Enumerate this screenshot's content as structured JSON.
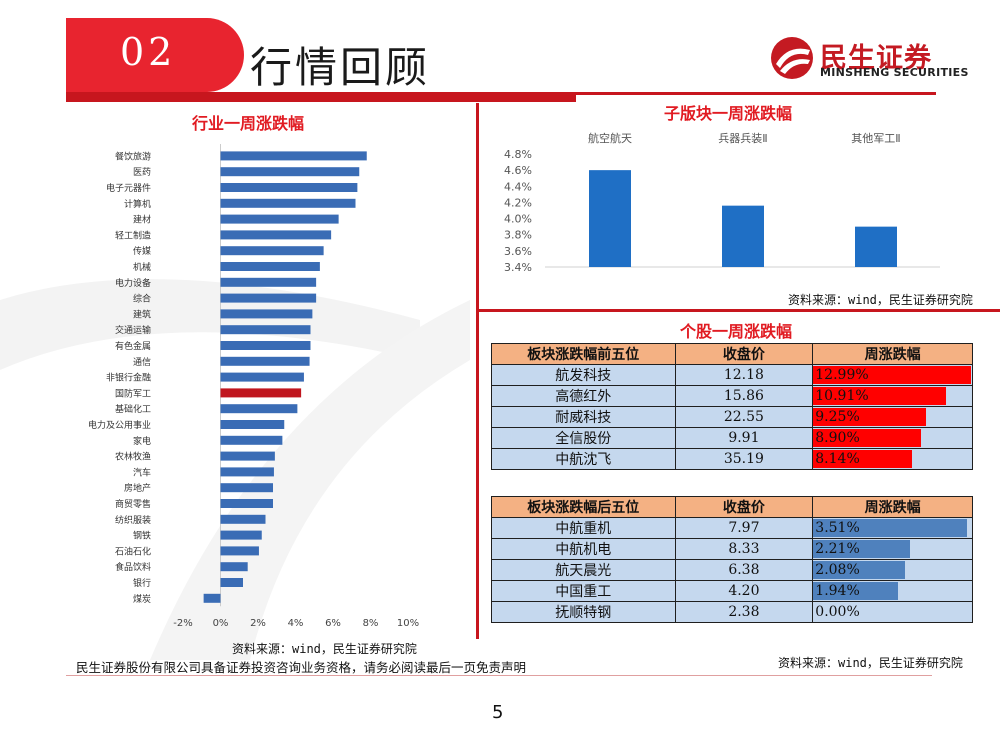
{
  "header": {
    "section_number": "02",
    "title": "行情回顾"
  },
  "logo": {
    "name_cn": "民生证券",
    "name_en": "MINSHENG SECURITIES"
  },
  "industry_chart": {
    "title": "行业一周涨跌幅",
    "source": "资料来源：wind，民生证券研究院",
    "chart_data": {
      "type": "bar",
      "orientation": "horizontal",
      "categories": [
        "餐饮旅游",
        "医药",
        "电子元器件",
        "计算机",
        "建材",
        "轻工制造",
        "传媒",
        "机械",
        "电力设备",
        "综合",
        "建筑",
        "交通运输",
        "有色金属",
        "通信",
        "非银行金融",
        "国防军工",
        "基础化工",
        "电力及公用事业",
        "家电",
        "农林牧渔",
        "汽车",
        "房地产",
        "商贸零售",
        "纺织服装",
        "钢铁",
        "石油石化",
        "食品饮料",
        "银行",
        "煤炭"
      ],
      "values": [
        7.8,
        7.4,
        7.3,
        7.2,
        6.3,
        5.9,
        5.5,
        5.3,
        5.1,
        5.1,
        4.9,
        4.8,
        4.8,
        4.75,
        4.45,
        4.3,
        4.1,
        3.4,
        3.3,
        2.9,
        2.85,
        2.8,
        2.8,
        2.4,
        2.2,
        2.05,
        1.45,
        1.2,
        -0.9
      ],
      "highlight": "国防军工",
      "x_ticks": [
        "-2%",
        "0%",
        "2%",
        "4%",
        "6%",
        "8%",
        "10%"
      ],
      "xlim": [
        -2,
        10
      ],
      "colors": {
        "bar": "#3a6cb5",
        "highlight": "#c0161e"
      }
    }
  },
  "sub_sector_chart": {
    "title": "子版块一周涨跌幅",
    "source": "资料来源：wind，民生证券研究院",
    "chart_data": {
      "type": "bar",
      "categories": [
        "航空航天",
        "兵器兵装Ⅱ",
        "其他军工Ⅱ"
      ],
      "values": [
        4.6,
        4.16,
        3.9
      ],
      "y_ticks": [
        "3.4%",
        "3.6%",
        "3.8%",
        "4.0%",
        "4.2%",
        "4.4%",
        "4.6%",
        "4.8%"
      ],
      "ylim": [
        3.4,
        4.8
      ],
      "colors": {
        "bar": "#1f6fc5"
      }
    }
  },
  "stock_tables": {
    "title": "个股一周涨跌幅",
    "source": "资料来源：wind，民生证券研究院",
    "top": {
      "headers": [
        "板块涨跌幅前五位",
        "收盘价",
        "周涨跌幅"
      ],
      "bar_color": "#ff0000",
      "rows": [
        {
          "name": "航发科技",
          "price": "12.18",
          "change": "12.99%",
          "value": 12.99
        },
        {
          "name": "高德红外",
          "price": "15.86",
          "change": "10.91%",
          "value": 10.91
        },
        {
          "name": "耐威科技",
          "price": "22.55",
          "change": "9.25%",
          "value": 9.25
        },
        {
          "name": "全信股份",
          "price": "9.91",
          "change": "8.90%",
          "value": 8.9
        },
        {
          "name": "中航沈飞",
          "price": "35.19",
          "change": "8.14%",
          "value": 8.14
        }
      ]
    },
    "bottom": {
      "headers": [
        "板块涨跌幅后五位",
        "收盘价",
        "周涨跌幅"
      ],
      "bar_color": "#4f81bd",
      "rows": [
        {
          "name": "中航重机",
          "price": "7.97",
          "change": "3.51%",
          "value": 3.51
        },
        {
          "name": "中航机电",
          "price": "8.33",
          "change": "2.21%",
          "value": 2.21
        },
        {
          "name": "航天晨光",
          "price": "6.38",
          "change": "2.08%",
          "value": 2.08
        },
        {
          "name": "中国重工",
          "price": "4.20",
          "change": "1.94%",
          "value": 1.94
        },
        {
          "name": "抚顺特钢",
          "price": "2.38",
          "change": "0.00%",
          "value": 0.0
        }
      ]
    }
  },
  "footer": {
    "disclaimer": "民生证券股份有限公司具备证券投资咨询业务资格，请务必阅读最后一页免责声明",
    "page_number": "5"
  }
}
